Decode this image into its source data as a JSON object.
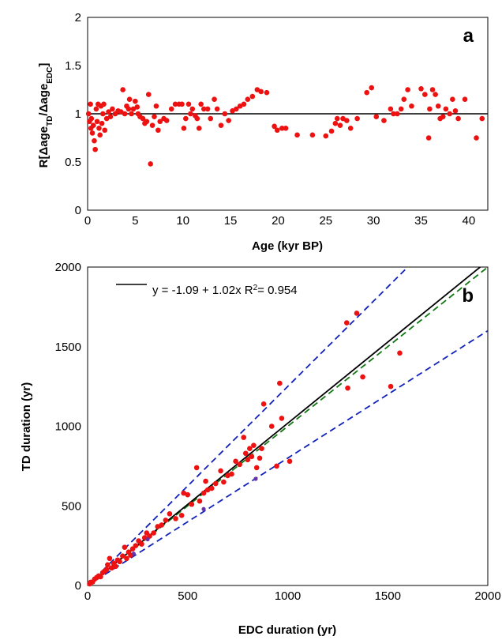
{
  "chart_data": [
    {
      "type": "scatter",
      "panel_label": "a",
      "ylabel": "R[Δage_TD/Δage_EDC]",
      "ylabel_parts": {
        "prefix": "R[",
        "delta1": "Δage",
        "sub1": "TD",
        "slash": "/",
        "delta2": "Δage",
        "sub2": "EDC",
        "suffix": "]"
      },
      "xlabel": "Age (kyr BP)",
      "xlim": [
        0,
        42
      ],
      "ylim": [
        0,
        2
      ],
      "xticks": [
        0,
        5,
        10,
        15,
        20,
        25,
        30,
        35,
        40
      ],
      "yticks": [
        0,
        0.5,
        1,
        1.5,
        2
      ],
      "xtick_labels": [
        "0",
        "5",
        "10",
        "15",
        "20",
        "25",
        "30",
        "35",
        "40"
      ],
      "ytick_labels": [
        "0",
        "0.5",
        "1",
        "1.5",
        "2"
      ],
      "reference_line": 1,
      "colors": {
        "points": "#ee1111",
        "line": "#000000"
      },
      "points": [
        [
          0.1,
          1.0
        ],
        [
          0.2,
          0.92
        ],
        [
          0.3,
          1.1
        ],
        [
          0.35,
          0.85
        ],
        [
          0.4,
          0.95
        ],
        [
          0.5,
          0.8
        ],
        [
          0.6,
          0.88
        ],
        [
          0.7,
          0.72
        ],
        [
          0.8,
          0.63
        ],
        [
          0.9,
          1.05
        ],
        [
          1.0,
          0.92
        ],
        [
          1.1,
          1.1
        ],
        [
          1.2,
          0.85
        ],
        [
          1.3,
          0.78
        ],
        [
          1.4,
          1.08
        ],
        [
          1.5,
          0.9
        ],
        [
          1.6,
          1.0
        ],
        [
          1.7,
          1.1
        ],
        [
          1.8,
          0.83
        ],
        [
          2.0,
          0.95
        ],
        [
          2.2,
          1.02
        ],
        [
          2.4,
          0.97
        ],
        [
          2.6,
          1.05
        ],
        [
          2.9,
          1.0
        ],
        [
          3.2,
          1.03
        ],
        [
          3.5,
          1.02
        ],
        [
          3.7,
          1.25
        ],
        [
          3.9,
          1.0
        ],
        [
          4.1,
          1.08
        ],
        [
          4.3,
          1.05
        ],
        [
          4.4,
          1.15
        ],
        [
          4.6,
          1.0
        ],
        [
          4.8,
          1.05
        ],
        [
          5.0,
          1.13
        ],
        [
          5.2,
          1.07
        ],
        [
          5.3,
          1.0
        ],
        [
          5.5,
          0.97
        ],
        [
          5.8,
          0.95
        ],
        [
          6.0,
          0.9
        ],
        [
          6.2,
          0.92
        ],
        [
          6.4,
          1.2
        ],
        [
          6.6,
          0.48
        ],
        [
          6.8,
          0.88
        ],
        [
          7.0,
          0.97
        ],
        [
          7.2,
          1.08
        ],
        [
          7.4,
          0.83
        ],
        [
          7.6,
          0.92
        ],
        [
          8.0,
          0.95
        ],
        [
          8.3,
          0.93
        ],
        [
          8.8,
          1.05
        ],
        [
          9.2,
          1.1
        ],
        [
          9.6,
          1.1
        ],
        [
          9.9,
          1.1
        ],
        [
          10.1,
          0.85
        ],
        [
          10.3,
          0.95
        ],
        [
          10.6,
          1.1
        ],
        [
          10.8,
          1.0
        ],
        [
          11.0,
          1.05
        ],
        [
          11.3,
          0.98
        ],
        [
          11.5,
          0.95
        ],
        [
          11.7,
          0.85
        ],
        [
          11.9,
          1.1
        ],
        [
          12.2,
          1.05
        ],
        [
          12.6,
          1.05
        ],
        [
          12.9,
          0.95
        ],
        [
          13.3,
          1.15
        ],
        [
          13.6,
          1.05
        ],
        [
          14.0,
          0.88
        ],
        [
          14.4,
          1.0
        ],
        [
          14.8,
          0.93
        ],
        [
          15.2,
          1.03
        ],
        [
          15.6,
          1.05
        ],
        [
          16.0,
          1.08
        ],
        [
          16.4,
          1.1
        ],
        [
          16.8,
          1.15
        ],
        [
          17.3,
          1.18
        ],
        [
          17.8,
          1.25
        ],
        [
          18.2,
          1.23
        ],
        [
          18.8,
          1.22
        ],
        [
          19.6,
          0.87
        ],
        [
          19.9,
          0.83
        ],
        [
          20.4,
          0.85
        ],
        [
          20.8,
          0.85
        ],
        [
          22.0,
          0.78
        ],
        [
          23.6,
          0.78
        ],
        [
          25.0,
          0.77
        ],
        [
          25.6,
          0.82
        ],
        [
          26.0,
          0.9
        ],
        [
          26.2,
          0.95
        ],
        [
          26.5,
          0.88
        ],
        [
          26.8,
          0.95
        ],
        [
          27.2,
          0.93
        ],
        [
          27.6,
          0.85
        ],
        [
          28.3,
          0.95
        ],
        [
          29.3,
          1.22
        ],
        [
          29.8,
          1.27
        ],
        [
          30.3,
          0.97
        ],
        [
          31.1,
          0.93
        ],
        [
          31.8,
          1.05
        ],
        [
          32.1,
          1.0
        ],
        [
          32.5,
          1.0
        ],
        [
          32.9,
          1.05
        ],
        [
          33.2,
          1.15
        ],
        [
          33.6,
          1.25
        ],
        [
          34.0,
          1.08
        ],
        [
          35.0,
          1.26
        ],
        [
          35.4,
          1.2
        ],
        [
          35.8,
          0.75
        ],
        [
          35.9,
          1.05
        ],
        [
          36.2,
          1.25
        ],
        [
          36.5,
          1.2
        ],
        [
          36.8,
          1.08
        ],
        [
          37.0,
          0.95
        ],
        [
          37.3,
          0.97
        ],
        [
          37.6,
          1.05
        ],
        [
          38.0,
          1.0
        ],
        [
          38.3,
          1.15
        ],
        [
          38.6,
          1.03
        ],
        [
          38.9,
          0.95
        ],
        [
          39.6,
          1.15
        ],
        [
          40.8,
          0.75
        ],
        [
          41.4,
          0.95
        ]
      ]
    },
    {
      "type": "scatter",
      "panel_label": "b",
      "xlabel": "EDC duration (yr)",
      "ylabel": "TD duration (yr)",
      "xlim": [
        0,
        2000
      ],
      "ylim": [
        0,
        2000
      ],
      "xticks": [
        0,
        500,
        1000,
        1500,
        2000
      ],
      "yticks": [
        0,
        500,
        1000,
        1500,
        2000
      ],
      "xtick_labels": [
        "0",
        "500",
        "1000",
        "1500",
        "2000"
      ],
      "ytick_labels": [
        "0",
        "500",
        "1000",
        "1500",
        "2000"
      ],
      "legend": {
        "equation": "y = -1.09 + 1.02x   R",
        "superscript": "2",
        "r2": "= 0.954"
      },
      "fit_line": {
        "intercept": -1.09,
        "slope": 1.02,
        "color": "#000000",
        "style": "solid"
      },
      "reference_lines": [
        {
          "slope": 1.0,
          "color": "#117711",
          "style": "dashed"
        },
        {
          "slope": 1.25,
          "color": "#1122bb",
          "style": "dashed"
        },
        {
          "slope": 0.8,
          "color": "#1122bb",
          "style": "dashed"
        }
      ],
      "colors": {
        "points": "#ee1111",
        "minor_points": "#6633aa"
      },
      "points": [
        [
          10,
          10
        ],
        [
          15,
          20
        ],
        [
          25,
          22
        ],
        [
          35,
          40
        ],
        [
          45,
          50
        ],
        [
          55,
          60
        ],
        [
          65,
          55
        ],
        [
          75,
          80
        ],
        [
          85,
          90
        ],
        [
          95,
          100
        ],
        [
          100,
          130
        ],
        [
          110,
          170
        ],
        [
          120,
          110
        ],
        [
          130,
          140
        ],
        [
          140,
          120
        ],
        [
          150,
          160
        ],
        [
          160,
          150
        ],
        [
          175,
          185
        ],
        [
          185,
          240
        ],
        [
          195,
          170
        ],
        [
          205,
          210
        ],
        [
          215,
          190
        ],
        [
          225,
          230
        ],
        [
          240,
          250
        ],
        [
          255,
          280
        ],
        [
          270,
          260
        ],
        [
          285,
          300
        ],
        [
          295,
          330
        ],
        [
          310,
          310
        ],
        [
          330,
          330
        ],
        [
          350,
          370
        ],
        [
          370,
          380
        ],
        [
          390,
          410
        ],
        [
          410,
          450
        ],
        [
          440,
          420
        ],
        [
          470,
          440
        ],
        [
          480,
          580
        ],
        [
          500,
          570
        ],
        [
          520,
          510
        ],
        [
          545,
          740
        ],
        [
          560,
          530
        ],
        [
          580,
          580
        ],
        [
          590,
          655
        ],
        [
          600,
          600
        ],
        [
          620,
          610
        ],
        [
          640,
          640
        ],
        [
          665,
          720
        ],
        [
          680,
          650
        ],
        [
          700,
          690
        ],
        [
          720,
          700
        ],
        [
          740,
          780
        ],
        [
          760,
          760
        ],
        [
          780,
          930
        ],
        [
          790,
          830
        ],
        [
          800,
          790
        ],
        [
          810,
          860
        ],
        [
          820,
          810
        ],
        [
          830,
          880
        ],
        [
          845,
          740
        ],
        [
          860,
          800
        ],
        [
          870,
          860
        ],
        [
          880,
          1140
        ],
        [
          920,
          1000
        ],
        [
          945,
          750
        ],
        [
          960,
          1270
        ],
        [
          970,
          1050
        ],
        [
          1010,
          780
        ],
        [
          1295,
          1650
        ],
        [
          1300,
          1240
        ],
        [
          1345,
          1710
        ],
        [
          1375,
          1310
        ],
        [
          1515,
          1250
        ],
        [
          1560,
          1460
        ]
      ],
      "minor_points": [
        [
          230,
          200
        ],
        [
          580,
          480
        ],
        [
          840,
          670
        ],
        [
          300,
          290
        ]
      ]
    }
  ]
}
